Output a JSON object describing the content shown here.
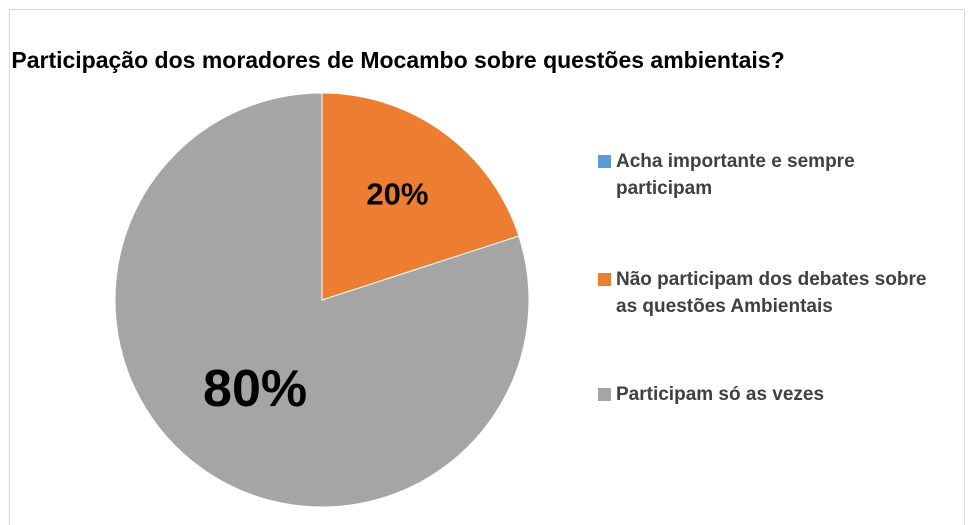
{
  "chart_data": {
    "type": "pie",
    "title": "Participação dos moradores de Mocambo sobre questões ambientais?",
    "categories": [
      "Acha importante e sempre participam",
      "Não participam dos debates sobre as questões Ambientais",
      "Participam só as vezes"
    ],
    "values": [
      0,
      20,
      80
    ],
    "value_labels": [
      null,
      "20%",
      "80%"
    ],
    "colors": [
      "#5b9bd5",
      "#ed7d31",
      "#a5a5a5"
    ],
    "legend": "right"
  }
}
